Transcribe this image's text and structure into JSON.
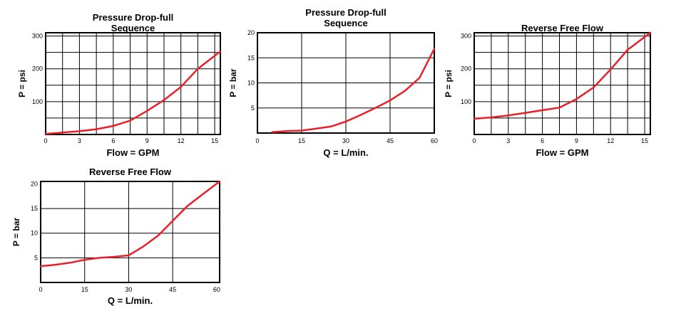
{
  "chart_data": [
    {
      "type": "line",
      "title_lines": [
        "Pressure Drop-full",
        "Sequence"
      ],
      "xlabel": "Flow = GPM",
      "ylabel": "P = psi",
      "xlim": [
        0,
        15.5
      ],
      "ylim": [
        0,
        310
      ],
      "xticks": [
        0,
        3,
        6,
        9,
        12,
        15
      ],
      "xtick_labels": [
        "0",
        "3",
        "6",
        "9",
        "12",
        "15"
      ],
      "yticks": [
        100,
        200,
        300
      ],
      "ytick_labels": [
        "100",
        "200",
        "300"
      ],
      "vgrid": [
        1.5,
        3,
        4.5,
        6,
        7.5,
        9,
        10.5,
        12,
        13.5,
        15
      ],
      "hgrid": [
        50,
        100,
        150,
        200,
        250,
        300
      ],
      "color": "#e8202a",
      "series": [
        {
          "x": [
            0,
            1.5,
            3,
            4.5,
            6,
            7.5,
            9,
            10.5,
            12,
            13.5,
            15.5
          ],
          "y": [
            2,
            6,
            10,
            16,
            26,
            42,
            72,
            105,
            145,
            200,
            253
          ]
        }
      ]
    },
    {
      "type": "line",
      "title_lines": [
        "Pressure Drop-full",
        "Sequence"
      ],
      "xlabel": "Q = L/min.",
      "ylabel": "P = bar",
      "xlim": [
        0,
        60
      ],
      "ylim": [
        0,
        20
      ],
      "xticks": [
        0,
        15,
        30,
        45,
        60
      ],
      "xtick_labels": [
        "0",
        "15",
        "30",
        "45",
        "60"
      ],
      "yticks": [
        5,
        10,
        15,
        20
      ],
      "ytick_labels": [
        "5",
        "10",
        "15",
        "20"
      ],
      "vgrid": [
        15,
        30,
        45
      ],
      "hgrid": [
        5,
        10,
        15
      ],
      "color": "#e8202a",
      "series": [
        {
          "x": [
            5,
            10,
            15,
            20,
            25,
            30,
            35,
            40,
            45,
            50,
            55,
            60
          ],
          "y": [
            0.2,
            0.4,
            0.5,
            0.9,
            1.3,
            2.3,
            3.6,
            5.0,
            6.5,
            8.4,
            11.0,
            16.8
          ]
        }
      ]
    },
    {
      "type": "line",
      "title_lines": [
        "Reverse Free Flow"
      ],
      "xlabel": "Flow = GPM",
      "ylabel": "P = psi",
      "xlim": [
        0,
        15.5
      ],
      "ylim": [
        0,
        310
      ],
      "xticks": [
        0,
        3,
        6,
        9,
        12,
        15
      ],
      "xtick_labels": [
        "0",
        "3",
        "6",
        "9",
        "12",
        "15"
      ],
      "yticks": [
        100,
        200,
        300
      ],
      "ytick_labels": [
        "100",
        "200",
        "300"
      ],
      "vgrid": [
        1.5,
        3,
        4.5,
        6,
        7.5,
        9,
        10.5,
        12,
        13.5,
        15
      ],
      "hgrid": [
        50,
        100,
        150,
        200,
        250,
        300
      ],
      "color": "#e8202a",
      "series": [
        {
          "x": [
            0,
            1.5,
            3,
            4.5,
            6,
            7.5,
            9,
            10.5,
            12,
            13.5,
            15.5
          ],
          "y": [
            48,
            52,
            58,
            66,
            74,
            82,
            108,
            143,
            198,
            258,
            310
          ]
        }
      ]
    },
    {
      "type": "line",
      "title_lines": [
        "Reverse Free Flow"
      ],
      "xlabel": "Q = L/min.",
      "ylabel": "P = bar",
      "xlim": [
        0,
        61
      ],
      "ylim": [
        0,
        20.5
      ],
      "xticks": [
        0,
        15,
        30,
        45,
        60
      ],
      "xtick_labels": [
        "0",
        "15",
        "30",
        "45",
        "60"
      ],
      "yticks": [
        5,
        10,
        15,
        20
      ],
      "ytick_labels": [
        "5",
        "10",
        "15",
        "20"
      ],
      "vgrid": [
        15,
        30,
        45
      ],
      "hgrid": [
        5,
        10,
        15
      ],
      "color": "#e8202a",
      "series": [
        {
          "x": [
            0,
            5,
            10,
            15,
            20,
            25,
            30,
            35,
            40,
            45,
            50,
            55,
            61
          ],
          "y": [
            3.3,
            3.6,
            4.0,
            4.6,
            5.0,
            5.2,
            5.5,
            7.3,
            9.5,
            12.5,
            15.5,
            17.8,
            20.5
          ]
        }
      ]
    }
  ]
}
